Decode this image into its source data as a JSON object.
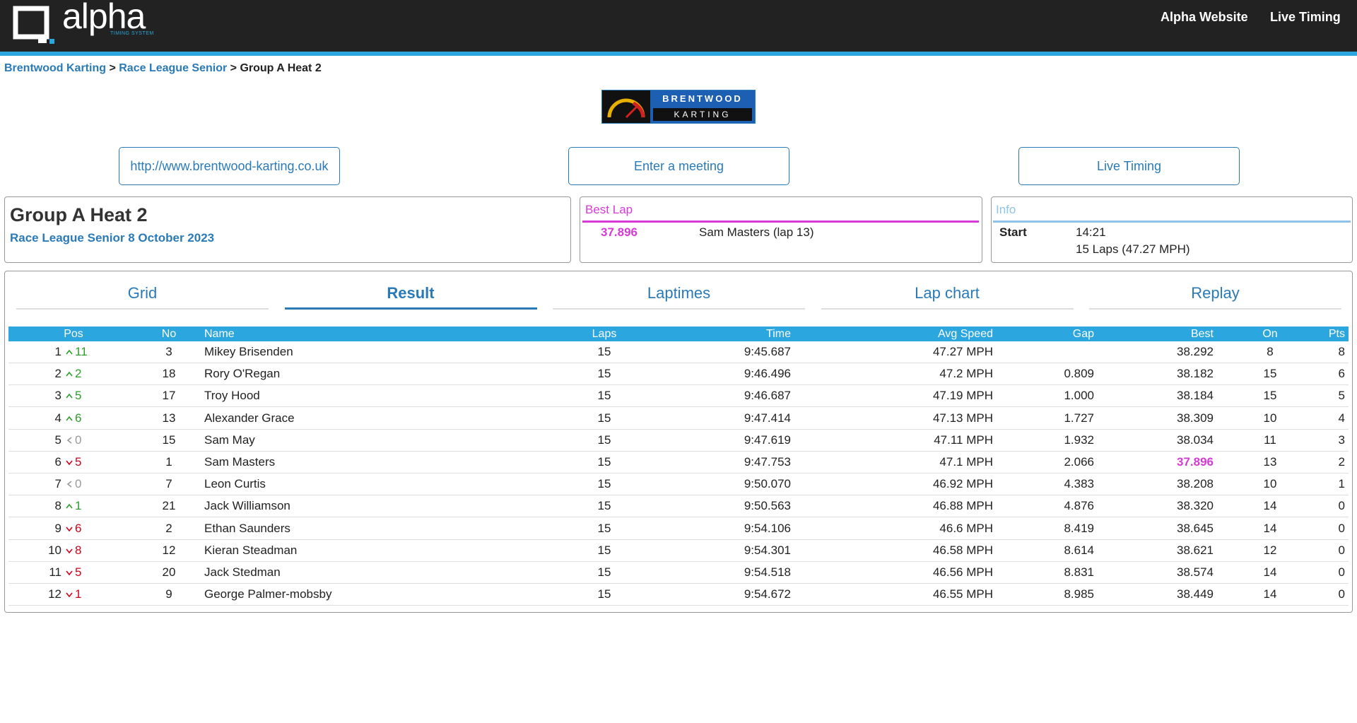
{
  "header": {
    "logo": "alpha",
    "logo_sub": "TIMING SYSTEM",
    "nav": [
      "Alpha Website",
      "Live Timing"
    ]
  },
  "breadcrumb": {
    "links": [
      "Brentwood Karting",
      "Race League Senior"
    ],
    "separator": ">",
    "current": "Group A Heat 2"
  },
  "banner": {
    "line1": "BRENTWOOD",
    "line2": "KARTING"
  },
  "buttons": [
    "http://www.brentwood-karting.co.uk",
    "Enter a meeting",
    "Live Timing"
  ],
  "event": {
    "title": "Group A Heat 2",
    "subtitle": "Race League Senior 8 October 2023"
  },
  "best_lap": {
    "heading": "Best Lap",
    "time": "37.896",
    "driver": "Sam Masters (lap 13)"
  },
  "info": {
    "heading": "Info",
    "label": "Start",
    "start": "14:21",
    "laps": "15 Laps (47.27 MPH)"
  },
  "tabs": {
    "items": [
      "Grid",
      "Result",
      "Laptimes",
      "Lap chart",
      "Replay"
    ],
    "active": 1
  },
  "table": {
    "columns": [
      "Pos",
      "No",
      "Name",
      "Laps",
      "Time",
      "Avg Speed",
      "Gap",
      "Best",
      "On",
      "Pts"
    ],
    "rows": [
      {
        "pos": "1",
        "dir": "up",
        "change": "11",
        "no": "3",
        "name": "Mikey Brisenden",
        "laps": "15",
        "time": "9:45.687",
        "avg": "47.27 MPH",
        "gap": null,
        "best": "38.292",
        "on": "8",
        "pts": "8"
      },
      {
        "pos": "2",
        "dir": "up",
        "change": "2",
        "no": "18",
        "name": "Rory O'Regan",
        "laps": "15",
        "time": "9:46.496",
        "avg": "47.2 MPH",
        "gap": "0.809",
        "best": "38.182",
        "on": "15",
        "pts": "6"
      },
      {
        "pos": "3",
        "dir": "up",
        "change": "5",
        "no": "17",
        "name": "Troy Hood",
        "laps": "15",
        "time": "9:46.687",
        "avg": "47.19 MPH",
        "gap": "1.000",
        "best": "38.184",
        "on": "15",
        "pts": "5"
      },
      {
        "pos": "4",
        "dir": "up",
        "change": "6",
        "no": "13",
        "name": "Alexander Grace",
        "laps": "15",
        "time": "9:47.414",
        "avg": "47.13 MPH",
        "gap": "1.727",
        "best": "38.309",
        "on": "10",
        "pts": "4"
      },
      {
        "pos": "5",
        "dir": "same",
        "change": "0",
        "no": "15",
        "name": "Sam May",
        "laps": "15",
        "time": "9:47.619",
        "avg": "47.11 MPH",
        "gap": "1.932",
        "best": "38.034",
        "on": "11",
        "pts": "3"
      },
      {
        "pos": "6",
        "dir": "down",
        "change": "5",
        "no": "1",
        "name": "Sam Masters",
        "laps": "15",
        "time": "9:47.753",
        "avg": "47.1 MPH",
        "gap": "2.066",
        "best": "37.896",
        "on": "13",
        "pts": "2"
      },
      {
        "pos": "7",
        "dir": "same",
        "change": "0",
        "no": "7",
        "name": "Leon Curtis",
        "laps": "15",
        "time": "9:50.070",
        "avg": "46.92 MPH",
        "gap": "4.383",
        "best": "38.208",
        "on": "10",
        "pts": "1"
      },
      {
        "pos": "8",
        "dir": "up",
        "change": "1",
        "no": "21",
        "name": "Jack Williamson",
        "laps": "15",
        "time": "9:50.563",
        "avg": "46.88 MPH",
        "gap": "4.876",
        "best": "38.320",
        "on": "14",
        "pts": "0"
      },
      {
        "pos": "9",
        "dir": "down",
        "change": "6",
        "no": "2",
        "name": "Ethan Saunders",
        "laps": "15",
        "time": "9:54.106",
        "avg": "46.6 MPH",
        "gap": "8.419",
        "best": "38.645",
        "on": "14",
        "pts": "0"
      },
      {
        "pos": "10",
        "dir": "down",
        "change": "8",
        "no": "12",
        "name": "Kieran Steadman",
        "laps": "15",
        "time": "9:54.301",
        "avg": "46.58 MPH",
        "gap": "8.614",
        "best": "38.621",
        "on": "12",
        "pts": "0"
      },
      {
        "pos": "11",
        "dir": "down",
        "change": "5",
        "no": "20",
        "name": "Jack Stedman",
        "laps": "15",
        "time": "9:54.518",
        "avg": "46.56 MPH",
        "gap": "8.831",
        "best": "38.574",
        "on": "14",
        "pts": "0"
      },
      {
        "pos": "12",
        "dir": "down",
        "change": "1",
        "no": "9",
        "name": "George Palmer-mobsby",
        "laps": "15",
        "time": "9:54.672",
        "avg": "46.55 MPH",
        "gap": "8.985",
        "best": "38.449",
        "on": "14",
        "pts": "0"
      }
    ]
  }
}
